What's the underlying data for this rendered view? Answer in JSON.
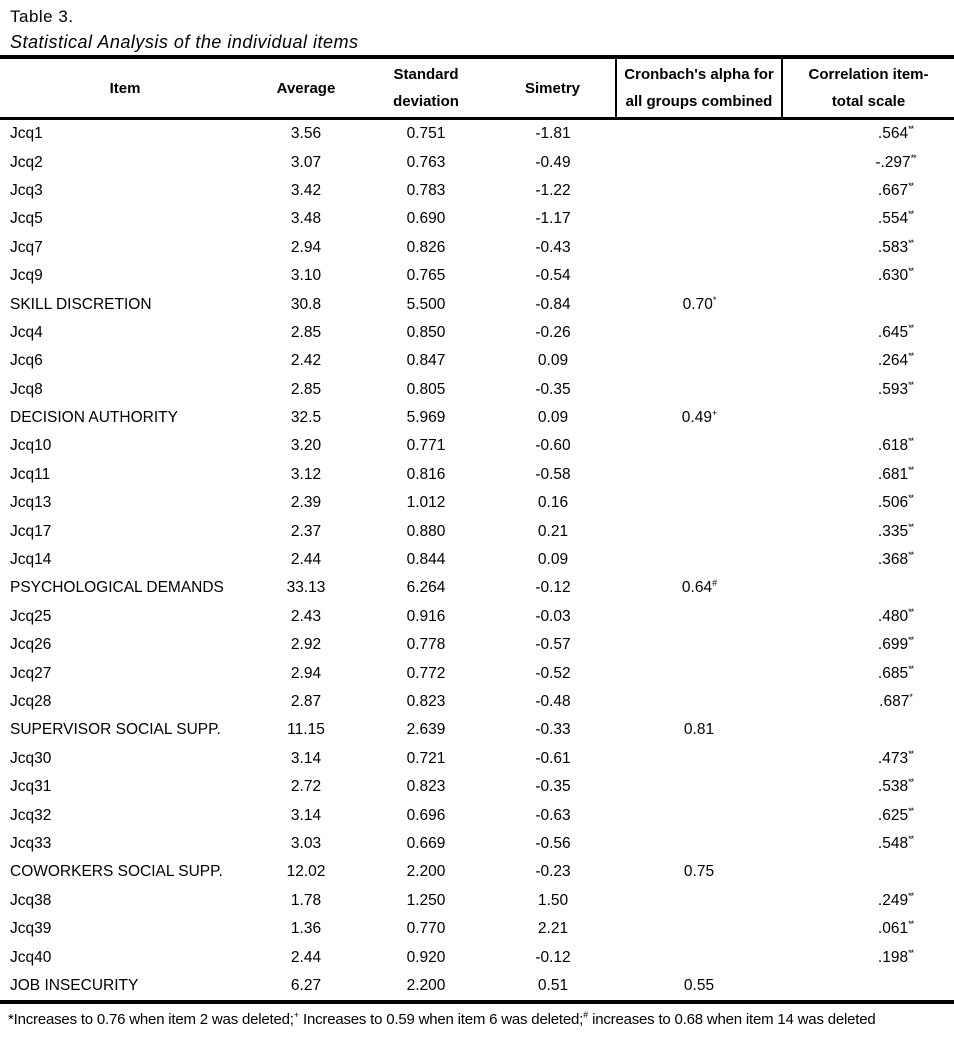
{
  "page": {
    "title": "Table 3.",
    "subtitle": "Statistical Analysis of the individual items"
  },
  "table": {
    "header": {
      "item": "Item",
      "average": "Average",
      "sd_line1": "Standard",
      "sd_line2": "deviation",
      "simetry": "Simetry",
      "alpha_line1": "Cronbach's alpha for",
      "alpha_line2": "all groups combined",
      "corr_line1": "Correlation item-",
      "corr_line2": "total scale"
    },
    "rows": [
      {
        "item": "Jcq1",
        "average": "3.56",
        "sd": "0.751",
        "simetry": "-1.81",
        "alpha": "",
        "alpha_sup": "",
        "corr": ".564",
        "corr_sup": "**"
      },
      {
        "item": "Jcq2",
        "average": "3.07",
        "sd": "0.763",
        "simetry": "-0.49",
        "alpha": "",
        "alpha_sup": "",
        "corr": "-.297",
        "corr_sup": "**"
      },
      {
        "item": "Jcq3",
        "average": "3.42",
        "sd": "0.783",
        "simetry": "-1.22",
        "alpha": "",
        "alpha_sup": "",
        "corr": ".667",
        "corr_sup": "**"
      },
      {
        "item": "Jcq5",
        "average": "3.48",
        "sd": "0.690",
        "simetry": "-1.17",
        "alpha": "",
        "alpha_sup": "",
        "corr": ".554",
        "corr_sup": "**"
      },
      {
        "item": "Jcq7",
        "average": "2.94",
        "sd": "0.826",
        "simetry": "-0.43",
        "alpha": "",
        "alpha_sup": "",
        "corr": ".583",
        "corr_sup": "**"
      },
      {
        "item": "Jcq9",
        "average": "3.10",
        "sd": "0.765",
        "simetry": "-0.54",
        "alpha": "",
        "alpha_sup": "",
        "corr": ".630",
        "corr_sup": "**"
      },
      {
        "item": "SKILL DISCRETION",
        "average": "30.8",
        "sd": "5.500",
        "simetry": "-0.84",
        "alpha": "0.70",
        "alpha_sup": "*",
        "corr": "",
        "corr_sup": ""
      },
      {
        "item": "Jcq4",
        "average": "2.85",
        "sd": "0.850",
        "simetry": "-0.26",
        "alpha": "",
        "alpha_sup": "",
        "corr": ".645",
        "corr_sup": "**"
      },
      {
        "item": "Jcq6",
        "average": "2.42",
        "sd": "0.847",
        "simetry": "0.09",
        "alpha": "",
        "alpha_sup": "",
        "corr": ".264",
        "corr_sup": "**"
      },
      {
        "item": "Jcq8",
        "average": "2.85",
        "sd": "0.805",
        "simetry": "-0.35",
        "alpha": "",
        "alpha_sup": "",
        "corr": ".593",
        "corr_sup": "**"
      },
      {
        "item": "DECISION AUTHORITY",
        "average": "32.5",
        "sd": "5.969",
        "simetry": "0.09",
        "alpha": "0.49",
        "alpha_sup": "+",
        "corr": "",
        "corr_sup": ""
      },
      {
        "item": "Jcq10",
        "average": "3.20",
        "sd": "0.771",
        "simetry": "-0.60",
        "alpha": "",
        "alpha_sup": "",
        "corr": ".618",
        "corr_sup": "**"
      },
      {
        "item": "Jcq11",
        "average": "3.12",
        "sd": "0.816",
        "simetry": "-0.58",
        "alpha": "",
        "alpha_sup": "",
        "corr": ".681",
        "corr_sup": "**"
      },
      {
        "item": "Jcq13",
        "average": "2.39",
        "sd": "1.012",
        "simetry": "0.16",
        "alpha": "",
        "alpha_sup": "",
        "corr": ".506",
        "corr_sup": "**"
      },
      {
        "item": "Jcq17",
        "average": "2.37",
        "sd": "0.880",
        "simetry": "0.21",
        "alpha": "",
        "alpha_sup": "",
        "corr": ".335",
        "corr_sup": "**"
      },
      {
        "item": "Jcq14",
        "average": "2.44",
        "sd": "0.844",
        "simetry": "0.09",
        "alpha": "",
        "alpha_sup": "",
        "corr": ".368",
        "corr_sup": "**"
      },
      {
        "item": "PSYCHOLOGICAL DEMANDS",
        "average": "33.13",
        "sd": "6.264",
        "simetry": "-0.12",
        "alpha": "0.64",
        "alpha_sup": "#",
        "corr": "",
        "corr_sup": ""
      },
      {
        "item": "Jcq25",
        "average": "2.43",
        "sd": "0.916",
        "simetry": "-0.03",
        "alpha": "",
        "alpha_sup": "",
        "corr": ".480",
        "corr_sup": "**"
      },
      {
        "item": "Jcq26",
        "average": "2.92",
        "sd": "0.778",
        "simetry": "-0.57",
        "alpha": "",
        "alpha_sup": "",
        "corr": ".699",
        "corr_sup": "**"
      },
      {
        "item": "Jcq27",
        "average": "2.94",
        "sd": "0.772",
        "simetry": "-0.52",
        "alpha": "",
        "alpha_sup": "",
        "corr": ".685",
        "corr_sup": "**"
      },
      {
        "item": "Jcq28",
        "average": "2.87",
        "sd": "0.823",
        "simetry": "-0.48",
        "alpha": "",
        "alpha_sup": "",
        "corr": ".687",
        "corr_sup": "*"
      },
      {
        "item": "SUPERVISOR  SOCIAL SUPP.",
        "average": "11.15",
        "sd": "2.639",
        "simetry": "-0.33",
        "alpha": "0.81",
        "alpha_sup": "",
        "corr": "",
        "corr_sup": ""
      },
      {
        "item": "Jcq30",
        "average": "3.14",
        "sd": "0.721",
        "simetry": "-0.61",
        "alpha": "",
        "alpha_sup": "",
        "corr": ".473",
        "corr_sup": "**"
      },
      {
        "item": "Jcq31",
        "average": "2.72",
        "sd": "0.823",
        "simetry": "-0.35",
        "alpha": "",
        "alpha_sup": "",
        "corr": ".538",
        "corr_sup": "**"
      },
      {
        "item": "Jcq32",
        "average": "3.14",
        "sd": "0.696",
        "simetry": "-0.63",
        "alpha": "",
        "alpha_sup": "",
        "corr": ".625",
        "corr_sup": "**"
      },
      {
        "item": "Jcq33",
        "average": "3.03",
        "sd": "0.669",
        "simetry": "-0.56",
        "alpha": "",
        "alpha_sup": "",
        "corr": ".548",
        "corr_sup": "**"
      },
      {
        "item": "COWORKERS SOCIAL SUPP.",
        "average": "12.02",
        "sd": "2.200",
        "simetry": "-0.23",
        "alpha": "0.75",
        "alpha_sup": "",
        "corr": "",
        "corr_sup": ""
      },
      {
        "item": "Jcq38",
        "average": "1.78",
        "sd": "1.250",
        "simetry": "1.50",
        "alpha": "",
        "alpha_sup": "",
        "corr": ".249",
        "corr_sup": "**"
      },
      {
        "item": "Jcq39",
        "average": "1.36",
        "sd": "0.770",
        "simetry": "2.21",
        "alpha": "",
        "alpha_sup": "",
        "corr": ".061",
        "corr_sup": "**"
      },
      {
        "item": "Jcq40",
        "average": "2.44",
        "sd": "0.920",
        "simetry": "-0.12",
        "alpha": "",
        "alpha_sup": "",
        "corr": ".198",
        "corr_sup": "**"
      },
      {
        "item": "JOB INSECURITY",
        "average": "6.27",
        "sd": "2.200",
        "simetry": "0.51",
        "alpha": "0.55",
        "alpha_sup": "",
        "corr": "",
        "corr_sup": ""
      }
    ]
  },
  "footnote": {
    "part1": "*Increases to 0.76 when item 2 was deleted;",
    "sup1": "+",
    "part2": " Increases to 0.59 when item 6 was deleted;",
    "sup2": "#",
    "part3": " increases to 0.68 when item 14 was deleted"
  }
}
